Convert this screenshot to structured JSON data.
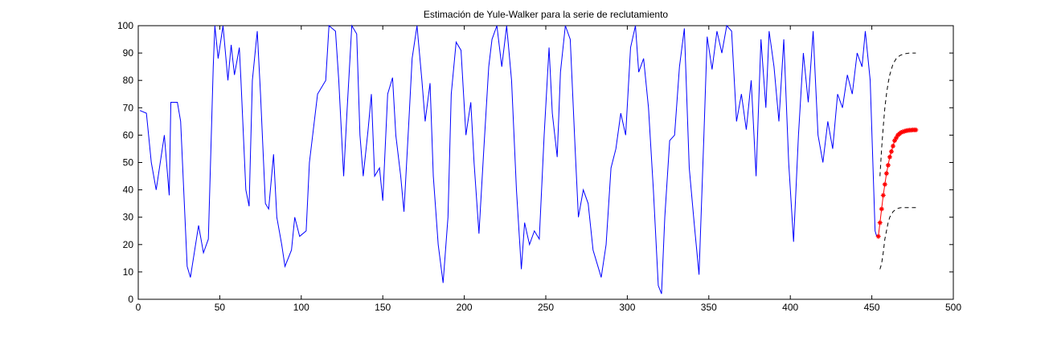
{
  "chart_data": {
    "type": "line",
    "title": "Estimación de Yule-Walker para la serie de reclutamiento",
    "xlim": [
      0,
      500
    ],
    "xticks": [
      0,
      50,
      100,
      150,
      200,
      250,
      300,
      350,
      400,
      450,
      500
    ],
    "ylim": [
      0,
      100
    ],
    "yticks": [
      0,
      10,
      20,
      30,
      40,
      50,
      60,
      70,
      80,
      90,
      100
    ],
    "grid": false,
    "series": [
      {
        "color": "#0000ff",
        "style": "solid",
        "x": [
          1,
          5,
          8,
          11,
          16,
          19,
          20,
          24,
          26,
          30,
          32,
          37,
          40,
          43,
          46,
          47,
          49,
          52,
          55,
          57,
          59,
          62,
          63,
          66,
          68,
          70,
          73,
          75,
          78,
          80,
          83,
          85,
          88,
          90,
          94,
          96,
          99,
          103,
          105,
          110,
          115,
          117,
          121,
          123,
          126,
          128,
          131,
          134,
          136,
          138,
          141,
          143,
          145,
          148,
          150,
          153,
          156,
          158,
          161,
          163,
          166,
          168,
          171,
          174,
          176,
          179,
          181,
          184,
          187,
          190,
          192,
          195,
          198,
          201,
          204,
          206,
          209,
          212,
          215,
          217,
          220,
          223,
          226,
          229,
          232,
          235,
          237,
          240,
          243,
          246,
          249,
          252,
          254,
          257,
          259,
          262,
          265,
          268,
          270,
          273,
          276,
          279,
          282,
          284,
          287,
          290,
          293,
          296,
          299,
          302,
          305,
          307,
          310,
          313,
          316,
          319,
          321,
          323,
          326,
          329,
          332,
          335,
          338,
          341,
          344,
          347,
          349,
          352,
          355,
          358,
          361,
          364,
          367,
          370,
          373,
          376,
          379,
          382,
          385,
          387,
          390,
          393,
          396,
          399,
          402,
          405,
          408,
          411,
          414,
          417,
          420,
          423,
          426,
          429,
          432,
          435,
          438,
          441,
          444,
          446,
          449,
          452,
          453
        ],
        "values": [
          69,
          68,
          50,
          40,
          60,
          38,
          72,
          72,
          65,
          12,
          8,
          27,
          17,
          22,
          85,
          100,
          88,
          100,
          80,
          93,
          82,
          92,
          80,
          40,
          34,
          80,
          98,
          75,
          35,
          33,
          53,
          30,
          20,
          12,
          18,
          30,
          23,
          25,
          50,
          75,
          80,
          100,
          98,
          80,
          45,
          68,
          100,
          97,
          60,
          45,
          62,
          75,
          45,
          48,
          36,
          75,
          81,
          60,
          45,
          32,
          65,
          88,
          100,
          80,
          65,
          79,
          45,
          20,
          6,
          30,
          75,
          94,
          91,
          60,
          72,
          50,
          24,
          55,
          85,
          95,
          100,
          85,
          100,
          80,
          40,
          11,
          28,
          20,
          25,
          22,
          60,
          92,
          68,
          52,
          83,
          100,
          95,
          55,
          30,
          40,
          35,
          18,
          12,
          8,
          20,
          48,
          55,
          68,
          60,
          92,
          100,
          83,
          88,
          70,
          40,
          5,
          2,
          30,
          58,
          60,
          85,
          99,
          48,
          28,
          9,
          60,
          96,
          84,
          98,
          90,
          100,
          98,
          65,
          75,
          62,
          80,
          45,
          95,
          70,
          98,
          85,
          65,
          95,
          50,
          21,
          60,
          90,
          72,
          98,
          60,
          50,
          65,
          55,
          75,
          70,
          82,
          75,
          90,
          85,
          98,
          80,
          25,
          23
        ]
      },
      {
        "color": "#ff0000",
        "style": "solid",
        "marker": "*",
        "x": [
          454,
          455,
          456,
          457,
          458,
          459,
          460,
          461,
          462,
          463,
          464,
          465,
          466,
          467,
          468,
          469,
          470,
          471,
          472,
          473,
          474,
          475,
          476,
          477
        ],
        "values": [
          23,
          28,
          33,
          38,
          42,
          46,
          49,
          52,
          54,
          56,
          58,
          59,
          60,
          60.5,
          61,
          61.2,
          61.4,
          61.6,
          61.7,
          61.8,
          61.8,
          61.9,
          61.9,
          61.9
        ]
      },
      {
        "color": "#000000",
        "style": "dashed",
        "x": [
          455,
          456,
          457,
          458,
          459,
          460,
          461,
          462,
          463,
          464,
          465,
          466,
          467,
          468,
          469,
          470,
          471,
          472,
          473,
          474,
          475,
          476,
          477
        ],
        "values": [
          45,
          55,
          63,
          70,
          75,
          79,
          82,
          84,
          86,
          87,
          88,
          88.5,
          89,
          89.3,
          89.5,
          89.7,
          89.8,
          89.9,
          90,
          90,
          90,
          90,
          90
        ]
      },
      {
        "color": "#000000",
        "style": "dashed",
        "x": [
          455,
          456,
          457,
          458,
          459,
          460,
          461,
          462,
          463,
          464,
          465,
          466,
          467,
          468,
          469,
          470,
          471,
          472,
          473,
          474,
          475,
          476,
          477
        ],
        "values": [
          11,
          13,
          17,
          22,
          25,
          28,
          30,
          31,
          32,
          32.5,
          33,
          33.2,
          33.4,
          33.5,
          33.5,
          33.5,
          33.5,
          33.5,
          33.5,
          33.5,
          33.5,
          33.5,
          33.5
        ]
      }
    ]
  }
}
